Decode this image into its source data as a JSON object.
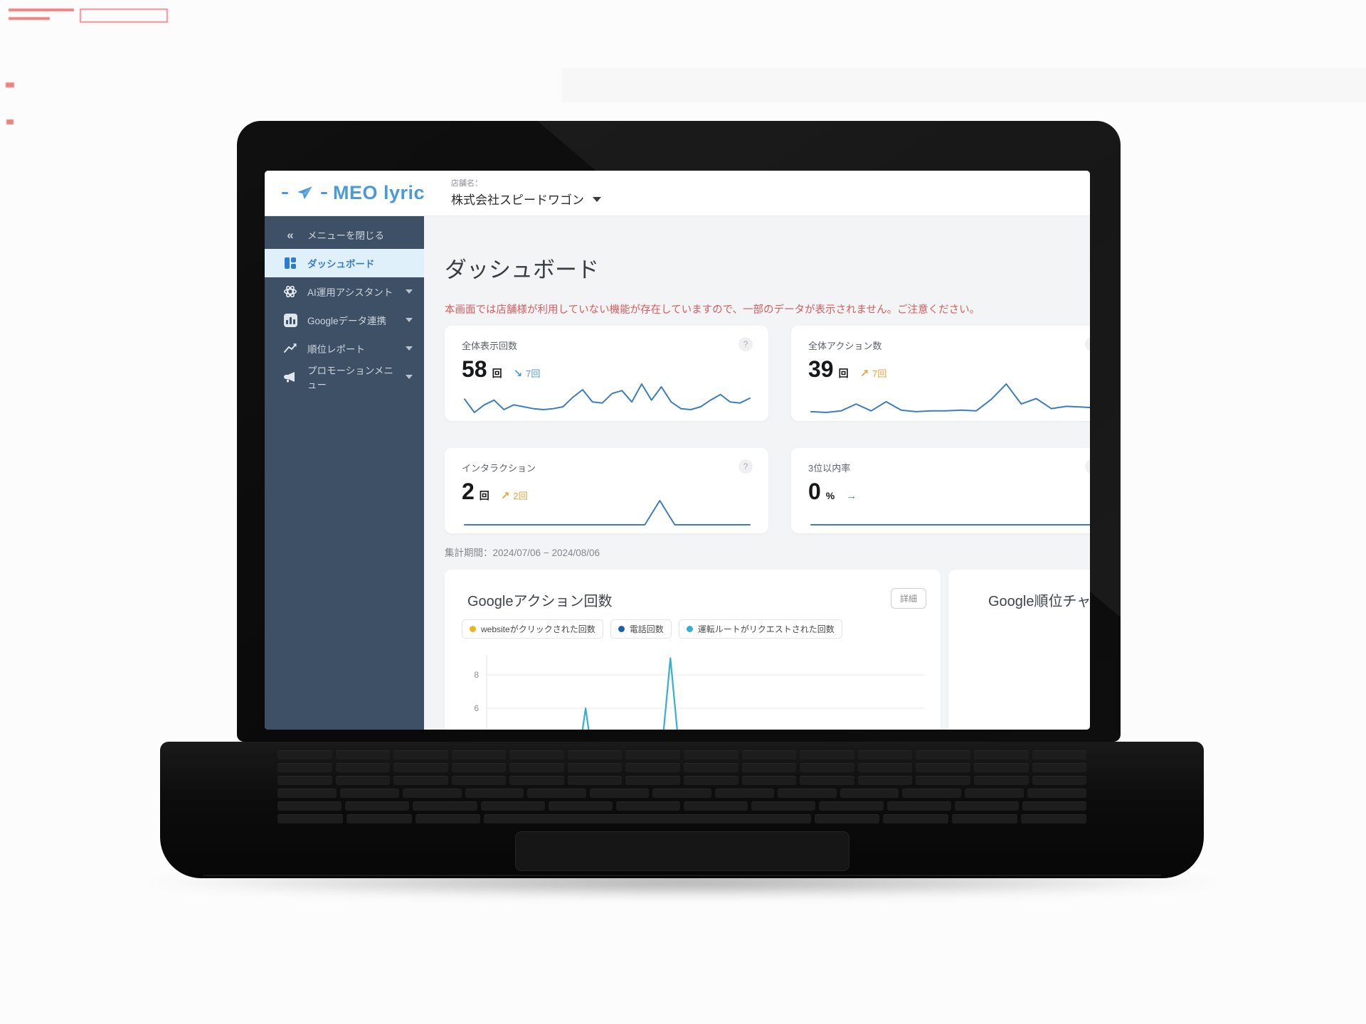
{
  "header": {
    "logo_text": "MEO lyric",
    "store_label": "店舗名：",
    "store_name": "株式会社スピードワゴン"
  },
  "sidebar": {
    "items": [
      {
        "label": "メニューを閉じる"
      },
      {
        "label": "ダッシュボード"
      },
      {
        "label": "AI運用アシスタント"
      },
      {
        "label": "Googleデータ連携"
      },
      {
        "label": "順位レポート"
      },
      {
        "label": "プロモーションメニュー"
      }
    ]
  },
  "main": {
    "title": "ダッシュボード",
    "warning": "本画面では店舗様が利用していない機能が存在していますので、一部のデータが表示されません。ご注意ください。",
    "help_glyph": "?",
    "stat_cards": [
      {
        "title": "全体表示回数",
        "value": "58",
        "unit": "回",
        "arrow": "↘",
        "delta": "7回",
        "accent": "#4f9bd8",
        "sparkline": [
          4.4,
          3.0,
          3.8,
          4.3,
          3.3,
          3.8,
          3.6,
          3.4,
          3.3,
          3.4,
          3.6,
          4.6,
          5.4,
          4.1,
          4.0,
          5.0,
          5.3,
          4.1,
          6.0,
          4.3,
          5.7,
          4.1,
          3.4,
          3.3,
          3.6,
          4.3,
          4.9,
          4.1,
          4.0,
          4.5
        ]
      },
      {
        "title": "全体アクション数",
        "value": "39",
        "unit": "回",
        "arrow": "↗",
        "delta": "7回",
        "accent": "#e8a13c",
        "sparkline": [
          1.6,
          1.5,
          1.7,
          2.6,
          1.7,
          2.9,
          1.8,
          1.6,
          1.7,
          1.7,
          1.8,
          1.7,
          3.2,
          5.2,
          2.6,
          3.3,
          2.0,
          2.3,
          2.2,
          2.1
        ]
      },
      {
        "title": "インタラクション",
        "value": "2",
        "unit": "回",
        "arrow": "↗",
        "delta": "2回",
        "accent": "#e8a13c",
        "sparkline": [
          0,
          0,
          0,
          0,
          0,
          0,
          0,
          0,
          0,
          0,
          0,
          0,
          0,
          2,
          0,
          0,
          0,
          0,
          0,
          0
        ]
      },
      {
        "title": "3位以内率",
        "value": "0",
        "unit": "%",
        "arrow": "→",
        "delta": "",
        "accent": "#3da554",
        "sparkline": [
          0,
          0,
          0,
          0,
          0,
          0,
          0,
          0,
          0,
          0
        ]
      }
    ],
    "period": "集計期間：2024/07/06 − 2024/08/06",
    "action_card": {
      "title": "Googleアクション回数",
      "detail_button": "詳細"
    },
    "rank_card": {
      "title": "Google順位チャ"
    }
  },
  "chart_data": {
    "type": "line",
    "title": "Googleアクション回数",
    "x_range": [
      "2024/07/06",
      "2024/08/06"
    ],
    "y_ticks_visible": [
      8,
      6
    ],
    "grid": true,
    "legend_position": "top",
    "series": [
      {
        "name": "websiteがクリックされた回数",
        "color": "#e5b723",
        "values": [
          0,
          0,
          0,
          0,
          0,
          0,
          0,
          0,
          0,
          0,
          0,
          0,
          0,
          0,
          0,
          0,
          0,
          0,
          0,
          0,
          0,
          0,
          0,
          0,
          0,
          0,
          0,
          0,
          0,
          0,
          0,
          0
        ]
      },
      {
        "name": "電話回数",
        "color": "#1f5fa8",
        "values": [
          0,
          0,
          0,
          0,
          0,
          0,
          0,
          0,
          0,
          0,
          0,
          0,
          0,
          0,
          0,
          0,
          0,
          0,
          0,
          0,
          0,
          0,
          0,
          0,
          0,
          0,
          0,
          0,
          0,
          0,
          0,
          0
        ]
      },
      {
        "name": "運転ルートがリクエストされた回数",
        "color": "#33b0d4",
        "values": [
          0,
          0,
          0,
          0,
          0,
          0,
          0,
          6,
          0,
          0,
          0,
          0,
          0,
          9,
          0,
          0,
          0,
          0,
          0,
          0,
          0,
          0,
          0,
          0,
          0,
          0,
          0,
          0,
          0,
          0,
          0,
          0
        ]
      }
    ]
  }
}
